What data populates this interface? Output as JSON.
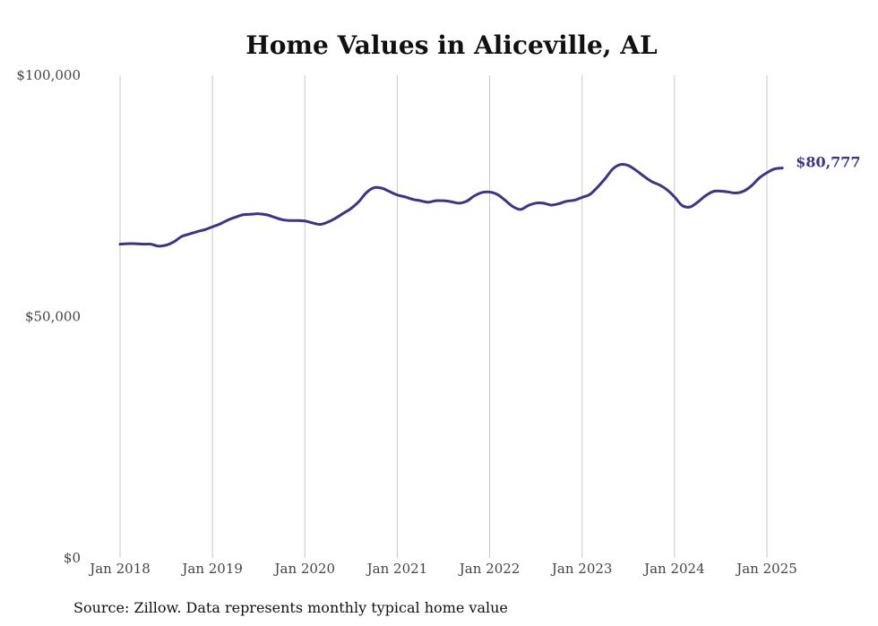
{
  "chart_data": {
    "type": "line",
    "title": "Home Values in Aliceville, AL",
    "xlabel": "",
    "ylabel": "",
    "ylim": [
      0,
      100000
    ],
    "y_ticks": [
      "$0",
      "$50,000",
      "$100,000"
    ],
    "y_tick_values": [
      0,
      50000,
      100000
    ],
    "x_ticks": [
      "Jan 2018",
      "Jan 2019",
      "Jan 2020",
      "Jan 2021",
      "Jan 2022",
      "Jan 2023",
      "Jan 2024",
      "Jan 2025"
    ],
    "x_tick_values": [
      "2018-01",
      "2019-01",
      "2020-01",
      "2021-01",
      "2022-01",
      "2023-01",
      "2024-01",
      "2025-01"
    ],
    "grid": {
      "vertical": true,
      "horizontal": false
    },
    "line_color": "#3b3489",
    "end_label": "$80,777",
    "series": [
      {
        "x": [
          "2018-01",
          "2018-02",
          "2018-03",
          "2018-04",
          "2018-05",
          "2018-06",
          "2018-07",
          "2018-08",
          "2018-09",
          "2018-10",
          "2018-11",
          "2018-12",
          "2019-01",
          "2019-02",
          "2019-03",
          "2019-04",
          "2019-05",
          "2019-06",
          "2019-07",
          "2019-08",
          "2019-09",
          "2019-10",
          "2019-11",
          "2019-12",
          "2020-01",
          "2020-02",
          "2020-03",
          "2020-04",
          "2020-05",
          "2020-06",
          "2020-07",
          "2020-08",
          "2020-09",
          "2020-10",
          "2020-11",
          "2020-12",
          "2021-01",
          "2021-02",
          "2021-03",
          "2021-04",
          "2021-05",
          "2021-06",
          "2021-07",
          "2021-08",
          "2021-09",
          "2021-10",
          "2021-11",
          "2021-12",
          "2022-01",
          "2022-02",
          "2022-03",
          "2022-04",
          "2022-05",
          "2022-06",
          "2022-07",
          "2022-08",
          "2022-09",
          "2022-10",
          "2022-11",
          "2022-12",
          "2023-01",
          "2023-02",
          "2023-03",
          "2023-04",
          "2023-05",
          "2023-06",
          "2023-07",
          "2023-08",
          "2023-09",
          "2023-10",
          "2023-11",
          "2023-12",
          "2024-01",
          "2024-02",
          "2024-03",
          "2024-04",
          "2024-05",
          "2024-06",
          "2024-07",
          "2024-08",
          "2024-09",
          "2024-10",
          "2024-11",
          "2024-12",
          "2025-01",
          "2025-02",
          "2025-03"
        ],
        "values": [
          65000,
          65100,
          65100,
          65000,
          65000,
          64600,
          64800,
          65500,
          66600,
          67100,
          67600,
          68000,
          68600,
          69200,
          70000,
          70600,
          71100,
          71200,
          71300,
          71100,
          70600,
          70100,
          69900,
          69900,
          69800,
          69400,
          69100,
          69600,
          70400,
          71400,
          72400,
          73800,
          75700,
          76700,
          76600,
          75900,
          75200,
          74800,
          74300,
          74000,
          73700,
          74000,
          74000,
          73800,
          73500,
          73900,
          75000,
          75700,
          75800,
          75300,
          74100,
          72800,
          72200,
          73000,
          73500,
          73500,
          73100,
          73400,
          73900,
          74100,
          74700,
          75300,
          76800,
          78600,
          80600,
          81500,
          81300,
          80300,
          79100,
          78000,
          77300,
          76300,
          74800,
          73000,
          72700,
          73700,
          75000,
          75900,
          76000,
          75800,
          75600,
          76000,
          77100,
          78700,
          79800,
          80600,
          80777
        ]
      }
    ],
    "source": "Source: Zillow. Data represents monthly typical home value"
  }
}
